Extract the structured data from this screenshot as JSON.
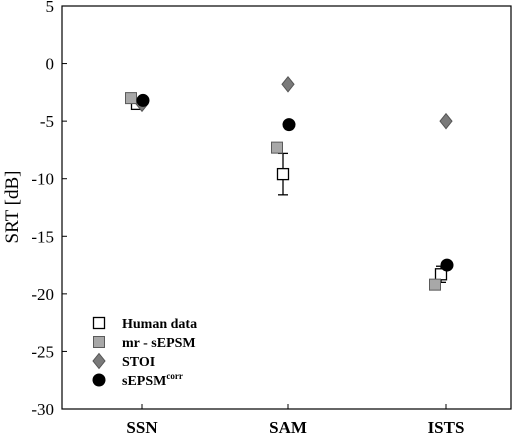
{
  "chart_data": {
    "type": "scatter",
    "title": "",
    "xlabel": "",
    "ylabel": "SRT [dB]",
    "categories": [
      "SSN",
      "SAM",
      "ISTS"
    ],
    "ylim": [
      -30,
      5
    ],
    "yticks": [
      5,
      0,
      -5,
      -10,
      -15,
      -20,
      -25,
      -30
    ],
    "grid": false,
    "legend_position": "bottom-left",
    "series": [
      {
        "name": "Human data",
        "marker": "open-square",
        "color": "#ffffff",
        "values": [
          -3.5,
          -9.6,
          -18.3
        ],
        "error": [
          0.4,
          1.8,
          0.7
        ]
      },
      {
        "name": "mr - sEPSM",
        "marker": "gray-square",
        "color": "#a8a8a8",
        "values": [
          -3.0,
          -7.3,
          -19.2
        ]
      },
      {
        "name": "STOI",
        "marker": "diamond",
        "color": "#7a7a7a",
        "values": [
          -3.5,
          -1.8,
          -5.0
        ]
      },
      {
        "name": "sEPSM",
        "name_sup": "corr",
        "marker": "filled-circle",
        "color": "#000000",
        "values": [
          -3.2,
          -5.3,
          -17.5
        ]
      }
    ]
  }
}
